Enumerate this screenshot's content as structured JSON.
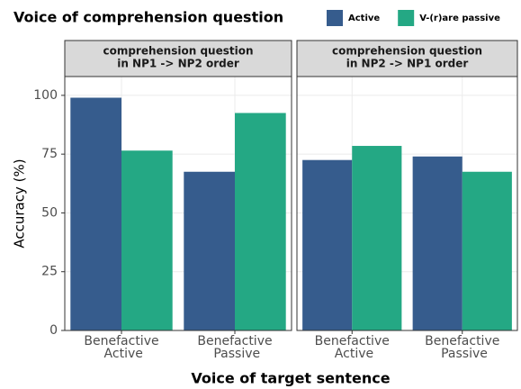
{
  "chart_data": {
    "type": "bar",
    "legend_title": "Voice of comprehension question",
    "series": [
      {
        "name": "Active",
        "color": "#365c8d"
      },
      {
        "name": "V-(r)are passive",
        "color": "#24a884"
      }
    ],
    "ylabel": "Accuracy (%)",
    "xlabel": "Voice of target sentence",
    "ylim": [
      0,
      108
    ],
    "yticks": [
      0,
      25,
      50,
      75,
      100
    ],
    "grid": true,
    "panels": [
      {
        "strip": [
          "comprehension question",
          "in NP1 -> NP2 order"
        ],
        "categories": [
          "Benefactive Active",
          "Benefactive Passive"
        ],
        "values": [
          [
            99,
            67.5
          ],
          [
            76.5,
            92.5
          ]
        ]
      },
      {
        "strip": [
          "comprehension question",
          "in NP2 -> NP1 order"
        ],
        "categories": [
          "Benefactive Active",
          "Benefactive Passive"
        ],
        "values": [
          [
            72.5,
            74
          ],
          [
            78.5,
            67.5
          ]
        ]
      }
    ]
  }
}
